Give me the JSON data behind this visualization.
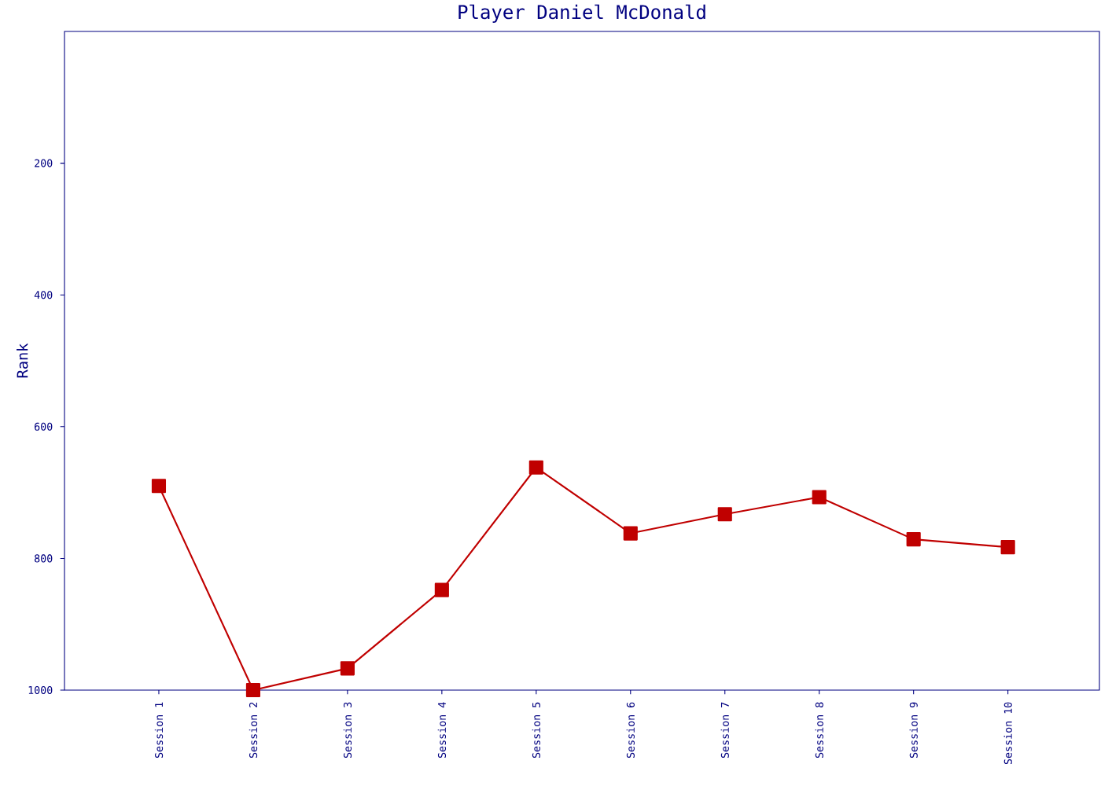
{
  "chart_data": {
    "type": "line",
    "title": "Player Daniel McDonald",
    "ylabel": "Rank",
    "categories": [
      "Session 1",
      "Session 2",
      "Session 3",
      "Session 4",
      "Session 5",
      "Session 6",
      "Session 7",
      "Session 8",
      "Session 9",
      "Session 10"
    ],
    "series": [
      {
        "color": "#c00000",
        "values": [
          690,
          1000,
          967,
          848,
          662,
          762,
          733,
          707,
          771,
          783
        ]
      }
    ],
    "ylim": [
      1000,
      0
    ],
    "yticks": [
      200,
      400,
      600,
      800,
      1000
    ],
    "marker": "square",
    "line_style": "solid",
    "grid": false
  }
}
